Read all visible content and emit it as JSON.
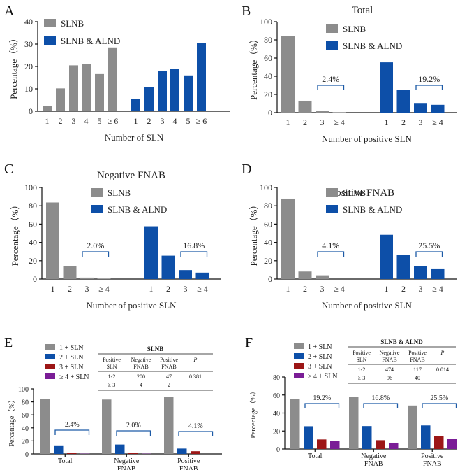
{
  "colors": {
    "slnb": "#8c8c8c",
    "slnb_alnd": "#0d4fa8",
    "pos1": "#8c8c8c",
    "pos2": "#0d4fa8",
    "pos3": "#9c1616",
    "pos4": "#7a1d96",
    "bracket": "#1c5aa6"
  },
  "chart_data": [
    {
      "id": "A",
      "panel_label": "A",
      "type": "bar",
      "title": "",
      "xlabel": "Number of SLN",
      "ylabel": "Percentage（%）",
      "ylim": [
        0,
        40
      ],
      "yticks": [
        "0",
        "10",
        "20",
        "30",
        "40"
      ],
      "legend": [
        "SLNB",
        "SLNB & ALND"
      ],
      "groups": [
        {
          "series": "SLNB",
          "categories": [
            "1",
            "2",
            "3",
            "4",
            "5",
            "≥ 6"
          ],
          "values": [
            2.5,
            10.2,
            20.5,
            21.0,
            16.6,
            28.5
          ]
        },
        {
          "series": "SLNB & ALND",
          "categories": [
            "1",
            "2",
            "3",
            "4",
            "5",
            "≥ 6"
          ],
          "values": [
            5.5,
            10.8,
            18.0,
            18.8,
            16.0,
            30.5
          ]
        }
      ]
    },
    {
      "id": "B",
      "panel_label": "B",
      "type": "bar",
      "title": "Total",
      "xlabel": "Number of positive SLN",
      "ylabel": "Percentage（%）",
      "ylim": [
        0,
        100
      ],
      "yticks": [
        "0",
        "20",
        "40",
        "60",
        "80",
        "100"
      ],
      "legend": [
        "SLNB",
        "SLNB & ALND"
      ],
      "groups": [
        {
          "series": "SLNB",
          "categories": [
            "1",
            "2",
            "3",
            "≥ 4"
          ],
          "values": [
            84.5,
            13.1,
            2.0,
            0.4
          ]
        },
        {
          "series": "SLNB & ALND",
          "categories": [
            "1",
            "2",
            "3",
            "≥ 4"
          ],
          "values": [
            55.3,
            25.3,
            10.6,
            8.6
          ]
        }
      ],
      "annotations": [
        "2.4%",
        "19.2%"
      ]
    },
    {
      "id": "C",
      "panel_label": "C",
      "type": "bar",
      "title": "Negative FNAB",
      "xlabel": "Number of positive SLN",
      "ylabel": "Percentage（%）",
      "ylim": [
        0,
        100
      ],
      "yticks": [
        "0",
        "20",
        "40",
        "60",
        "80",
        "100"
      ],
      "legend": [
        "SLNB",
        "SLNB & ALND"
      ],
      "groups": [
        {
          "series": "SLNB",
          "categories": [
            "1",
            "2",
            "3",
            "≥ 4"
          ],
          "values": [
            83.6,
            14.4,
            1.6,
            0.4
          ]
        },
        {
          "series": "SLNB & ALND",
          "categories": [
            "1",
            "2",
            "3",
            "≥ 4"
          ],
          "values": [
            57.6,
            25.5,
            9.8,
            7.0
          ]
        }
      ],
      "annotations": [
        "2.0%",
        "16.8%"
      ]
    },
    {
      "id": "D",
      "panel_label": "D",
      "type": "bar",
      "title": "Positive FNAB",
      "xlabel": "Number of positive SLN",
      "ylabel": "Percentage（%）",
      "ylim": [
        0,
        100
      ],
      "yticks": [
        "0",
        "20",
        "40",
        "60",
        "80",
        "100"
      ],
      "legend": [
        "SLNB",
        "SLNB & ALND"
      ],
      "groups": [
        {
          "series": "SLNB",
          "categories": [
            "1",
            "2",
            "3",
            "≥ 4"
          ],
          "values": [
            87.8,
            8.2,
            4.1,
            0.0
          ]
        },
        {
          "series": "SLNB & ALND",
          "categories": [
            "1",
            "2",
            "3",
            "≥ 4"
          ],
          "values": [
            48.3,
            26.2,
            14.0,
            11.5
          ]
        }
      ],
      "annotations": [
        "4.1%",
        "25.5%"
      ]
    },
    {
      "id": "E",
      "panel_label": "E",
      "type": "bar",
      "title": "",
      "xlabel": "",
      "ylabel": "Percentage（%）",
      "ylim": [
        0,
        100
      ],
      "yticks": [
        "0",
        "20",
        "40",
        "60",
        "80",
        "100"
      ],
      "categories": [
        "Total",
        "Negative FNAB",
        "Positive FNAB"
      ],
      "series": [
        {
          "name": "1 + SLN",
          "values": [
            84.5,
            83.6,
            87.8
          ]
        },
        {
          "name": "2 + SLN",
          "values": [
            13.1,
            14.4,
            8.2
          ]
        },
        {
          "name": "3 + SLN",
          "values": [
            2.0,
            1.6,
            4.1
          ]
        },
        {
          "name": "≥ 4 + SLN",
          "values": [
            0.4,
            0.4,
            0.0
          ]
        }
      ],
      "annotations": [
        "2.4%",
        "2.0%",
        "4.1%"
      ],
      "table": {
        "title": "SLNB",
        "header": [
          [
            "Positive",
            "SLN"
          ],
          [
            "Negative",
            "FNAB"
          ],
          [
            "Positive",
            "FNAB"
          ],
          [
            "P",
            ""
          ]
        ],
        "rows": [
          [
            "1-2",
            "200",
            "47",
            "0.381"
          ],
          [
            "≥ 3",
            "4",
            "2",
            ""
          ]
        ]
      }
    },
    {
      "id": "F",
      "panel_label": "F",
      "type": "bar",
      "title": "",
      "xlabel": "",
      "ylabel": "Percentage（%）",
      "ylim": [
        0,
        80
      ],
      "yticks": [
        "0",
        "20",
        "40",
        "60",
        "80"
      ],
      "categories": [
        "Total",
        "Negative FNAB",
        "Positive FNAB"
      ],
      "series": [
        {
          "name": "1 + SLN",
          "values": [
            55.3,
            57.6,
            48.3
          ]
        },
        {
          "name": "2 + SLN",
          "values": [
            25.3,
            25.5,
            26.2
          ]
        },
        {
          "name": "3 + SLN",
          "values": [
            10.6,
            9.8,
            14.0
          ]
        },
        {
          "name": "≥ 4 + SLN",
          "values": [
            8.6,
            7.0,
            11.5
          ]
        }
      ],
      "annotations": [
        "19.2%",
        "16.8%",
        "25.5%"
      ],
      "table": {
        "title": "SLNB & ALND",
        "header": [
          [
            "Positive",
            "SLN"
          ],
          [
            "Negative",
            "FNAB"
          ],
          [
            "Positive",
            "FNAB"
          ],
          [
            "P",
            ""
          ]
        ],
        "rows": [
          [
            "1-2",
            "474",
            "117",
            "0.014"
          ],
          [
            "≥ 3",
            "96",
            "40",
            ""
          ]
        ]
      }
    }
  ]
}
